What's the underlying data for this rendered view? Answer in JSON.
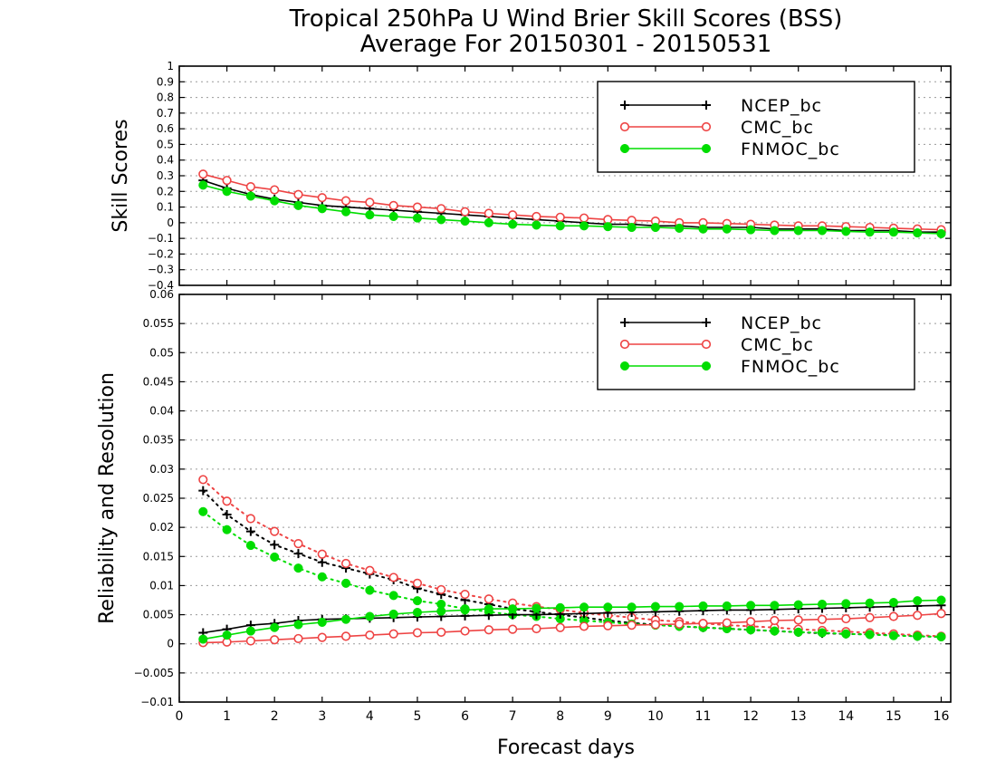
{
  "title_line1": "Tropical 250hPa U Wind Brier Skill Scores (BSS)",
  "title_line2": "Average For 20150301 - 20150531",
  "xlabel": "Forecast days",
  "colors": {
    "NCEP_bc": "#000000",
    "CMC_bc": "#ee4444",
    "FNMOC_bc": "#00dd00"
  },
  "chart_data": [
    {
      "type": "line",
      "panel": "top",
      "ylabel": "Skill Scores",
      "xlim": [
        0,
        16.2
      ],
      "ylim": [
        -0.4,
        1
      ],
      "yticks": [
        1,
        0.9,
        0.8,
        0.7,
        0.6,
        0.5,
        0.4,
        0.3,
        0.2,
        0.1,
        0,
        -0.1,
        -0.2,
        -0.3,
        -0.4
      ],
      "ytick_labels": [
        "1",
        "0.9",
        "0.8",
        "0.7",
        "0.6",
        "0.5",
        "0.4",
        "0.3",
        "0.2",
        "0.1",
        "0",
        "−0.1",
        "−0.2",
        "−0.3",
        "−0.4"
      ],
      "grid": true,
      "legend": "top-right",
      "x": [
        0.5,
        1,
        1.5,
        2,
        2.5,
        3,
        3.5,
        4,
        4.5,
        5,
        5.5,
        6,
        6.5,
        7,
        7.5,
        8,
        8.5,
        9,
        9.5,
        10,
        10.5,
        11,
        11.5,
        12,
        12.5,
        13,
        13.5,
        14,
        14.5,
        15,
        15.5,
        16
      ],
      "series": [
        {
          "name": "NCEP_bc",
          "marker": "plus",
          "style": "solid",
          "values": [
            0.27,
            0.22,
            0.18,
            0.15,
            0.13,
            0.11,
            0.1,
            0.09,
            0.08,
            0.07,
            0.06,
            0.05,
            0.04,
            0.03,
            0.02,
            0.01,
            0.0,
            -0.01,
            -0.01,
            -0.02,
            -0.02,
            -0.03,
            -0.03,
            -0.03,
            -0.04,
            -0.04,
            -0.04,
            -0.05,
            -0.05,
            -0.05,
            -0.06,
            -0.06
          ]
        },
        {
          "name": "CMC_bc",
          "marker": "circle-open",
          "style": "solid",
          "values": [
            0.31,
            0.27,
            0.23,
            0.21,
            0.18,
            0.16,
            0.14,
            0.13,
            0.11,
            0.1,
            0.09,
            0.07,
            0.06,
            0.05,
            0.04,
            0.035,
            0.03,
            0.02,
            0.015,
            0.01,
            0.0,
            0.0,
            -0.005,
            -0.01,
            -0.015,
            -0.02,
            -0.02,
            -0.025,
            -0.03,
            -0.035,
            -0.04,
            -0.045
          ]
        },
        {
          "name": "FNMOC_bc",
          "marker": "circle-filled",
          "style": "solid",
          "values": [
            0.24,
            0.2,
            0.17,
            0.14,
            0.11,
            0.09,
            0.07,
            0.05,
            0.04,
            0.03,
            0.02,
            0.01,
            0.0,
            -0.01,
            -0.015,
            -0.02,
            -0.02,
            -0.025,
            -0.03,
            -0.03,
            -0.035,
            -0.04,
            -0.04,
            -0.045,
            -0.05,
            -0.05,
            -0.05,
            -0.055,
            -0.06,
            -0.06,
            -0.065,
            -0.07
          ]
        }
      ]
    },
    {
      "type": "line",
      "panel": "bottom",
      "ylabel": "Reliability and Resolution",
      "xlim": [
        0,
        16.2
      ],
      "ylim": [
        -0.01,
        0.06
      ],
      "yticks": [
        0.06,
        0.055,
        0.05,
        0.045,
        0.04,
        0.035,
        0.03,
        0.025,
        0.02,
        0.015,
        0.01,
        0.005,
        0,
        -0.005,
        -0.01
      ],
      "ytick_labels": [
        "0.06",
        "0.055",
        "0.05",
        "0.045",
        "0.04",
        "0.035",
        "0.03",
        "0.025",
        "0.02",
        "0.015",
        "0.01",
        "0.005",
        "0",
        "−0.005",
        "−0.01"
      ],
      "xticks": [
        0,
        1,
        2,
        3,
        4,
        5,
        6,
        7,
        8,
        9,
        10,
        11,
        12,
        13,
        14,
        15,
        16
      ],
      "grid": true,
      "legend": "top-right",
      "x": [
        0.5,
        1,
        1.5,
        2,
        2.5,
        3,
        3.5,
        4,
        4.5,
        5,
        5.5,
        6,
        6.5,
        7,
        7.5,
        8,
        8.5,
        9,
        9.5,
        10,
        10.5,
        11,
        11.5,
        12,
        12.5,
        13,
        13.5,
        14,
        14.5,
        15,
        15.5,
        16
      ],
      "series": [
        {
          "name": "NCEP_bc",
          "marker": "plus",
          "style": "dotted",
          "values": [
            0.0263,
            0.0222,
            0.0193,
            0.017,
            0.0155,
            0.014,
            0.013,
            0.012,
            0.011,
            0.0095,
            0.0085,
            0.0075,
            0.0068,
            0.006,
            0.0055,
            0.005,
            0.0045,
            0.004,
            0.0036,
            0.0033,
            0.003,
            0.0028,
            0.0026,
            0.0024,
            0.0022,
            0.002,
            0.0018,
            0.0017,
            0.0016,
            0.0015,
            0.0013,
            0.0012
          ]
        },
        {
          "name": "CMC_bc",
          "marker": "circle-open",
          "style": "dotted",
          "values": [
            0.0282,
            0.0245,
            0.0215,
            0.0193,
            0.0172,
            0.0154,
            0.0138,
            0.0126,
            0.0114,
            0.0104,
            0.0093,
            0.0085,
            0.0077,
            0.007,
            0.0064,
            0.0059,
            0.0053,
            0.0049,
            0.0045,
            0.0041,
            0.0038,
            0.0035,
            0.0032,
            0.003,
            0.0028,
            0.0025,
            0.0023,
            0.0021,
            0.0019,
            0.0017,
            0.0015,
            0.0013
          ]
        },
        {
          "name": "FNMOC_bc",
          "marker": "circle-filled",
          "style": "dotted",
          "values": [
            0.0227,
            0.0196,
            0.0169,
            0.0149,
            0.013,
            0.0115,
            0.0104,
            0.0092,
            0.0083,
            0.0074,
            0.0068,
            0.006,
            0.0055,
            0.005,
            0.0047,
            0.0043,
            0.004,
            0.0037,
            0.0034,
            0.0032,
            0.003,
            0.0028,
            0.0026,
            0.0024,
            0.0022,
            0.002,
            0.0019,
            0.0017,
            0.0016,
            0.0014,
            0.0013,
            0.0012
          ]
        },
        {
          "name": "NCEP_bc",
          "marker": "plus",
          "style": "solid",
          "values": [
            0.0019,
            0.0025,
            0.0032,
            0.0035,
            0.004,
            0.0042,
            0.0043,
            0.0044,
            0.0045,
            0.0046,
            0.0047,
            0.0048,
            0.0049,
            0.005,
            0.005,
            0.0051,
            0.0052,
            0.0053,
            0.0054,
            0.0055,
            0.0056,
            0.0057,
            0.0058,
            0.0058,
            0.0059,
            0.006,
            0.0061,
            0.0062,
            0.0063,
            0.0064,
            0.0065,
            0.0066
          ]
        },
        {
          "name": "CMC_bc",
          "marker": "circle-open",
          "style": "solid",
          "values": [
            0.0002,
            0.0003,
            0.0005,
            0.0007,
            0.0009,
            0.0011,
            0.0013,
            0.0015,
            0.0017,
            0.0019,
            0.002,
            0.0022,
            0.0024,
            0.0025,
            0.0026,
            0.0028,
            0.003,
            0.0031,
            0.0032,
            0.0033,
            0.0034,
            0.0035,
            0.0036,
            0.0038,
            0.004,
            0.0041,
            0.0042,
            0.0043,
            0.0045,
            0.0047,
            0.0049,
            0.0052
          ]
        },
        {
          "name": "FNMOC_bc",
          "marker": "circle-filled",
          "style": "solid",
          "values": [
            0.0008,
            0.0015,
            0.0022,
            0.0028,
            0.0033,
            0.0037,
            0.0042,
            0.0047,
            0.0051,
            0.0054,
            0.0056,
            0.0058,
            0.006,
            0.006,
            0.0061,
            0.0062,
            0.0063,
            0.0063,
            0.0063,
            0.0064,
            0.0064,
            0.0065,
            0.0065,
            0.0066,
            0.0066,
            0.0067,
            0.0068,
            0.0069,
            0.007,
            0.0071,
            0.0074,
            0.0075
          ]
        }
      ]
    }
  ]
}
